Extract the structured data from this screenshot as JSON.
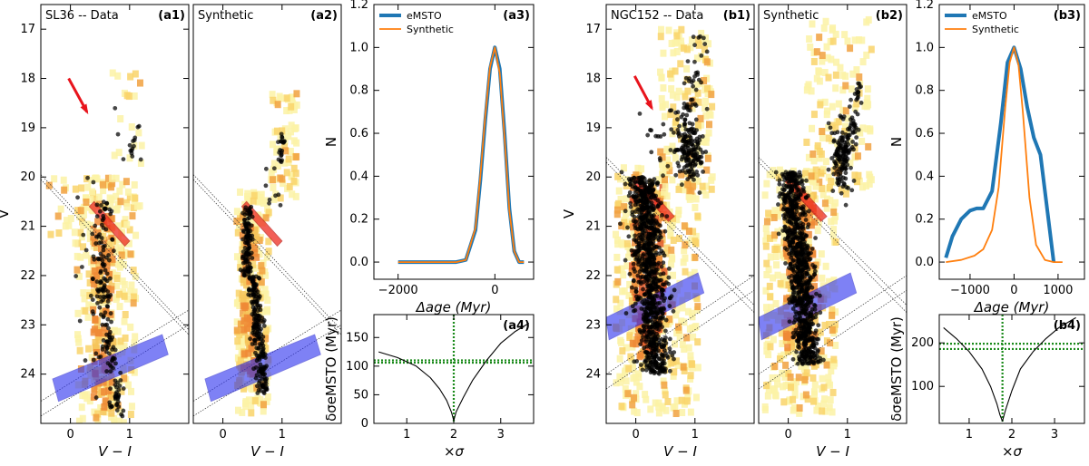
{
  "figure": {
    "description_labels": [
      "SL36 -- Data",
      "Synthetic",
      "NGC152 -- Data",
      "Synthetic"
    ]
  },
  "chart_data": [
    {
      "id": "a1",
      "type": "scatter",
      "title": "SL36 -- Data",
      "panel_label": "(a1)",
      "xlabel": "V − I",
      "ylabel": "V",
      "xlim": [
        -0.5,
        2.0
      ],
      "ylim": [
        25.0,
        16.5
      ],
      "yticks": [
        17,
        18,
        19,
        20,
        21,
        22,
        23,
        24
      ],
      "xticks": [
        0,
        1
      ],
      "xticklabels": [
        "0",
        "1"
      ],
      "yticklabels": [
        "17",
        "18",
        "19",
        "20",
        "21",
        "22",
        "23",
        "24"
      ],
      "annotations": [
        "red arrow pointing to blue stragglers",
        "red band: eMSTO region",
        "blue band: reference MS region"
      ]
    },
    {
      "id": "a2",
      "type": "scatter",
      "title": "Synthetic",
      "panel_label": "(a2)",
      "xlabel": "V − I",
      "xlim": [
        -0.5,
        2.0
      ],
      "ylim": [
        25.0,
        16.5
      ],
      "xticks": [
        0,
        1
      ],
      "xticklabels": [
        "0",
        "1"
      ]
    },
    {
      "id": "a3",
      "type": "line",
      "panel_label": "(a3)",
      "xlabel": "Δage (Myr)",
      "ylabel": "N",
      "xlim": [
        -2500,
        800
      ],
      "ylim": [
        -0.08,
        1.2
      ],
      "xticks": [
        -2000,
        0
      ],
      "xticklabels": [
        "−2000",
        "0"
      ],
      "yticks": [
        0.0,
        0.2,
        0.4,
        0.6,
        0.8,
        1.0,
        1.2
      ],
      "yticklabels": [
        "0.0",
        "0.2",
        "0.4",
        "0.6",
        "0.8",
        "1.0",
        "1.2"
      ],
      "legend": [
        "eMSTO",
        "Synthetic"
      ],
      "series": [
        {
          "name": "eMSTO",
          "color": "#1f77b4",
          "x": [
            -2000,
            -800,
            -600,
            -400,
            -300,
            -200,
            -100,
            0,
            100,
            200,
            300,
            400,
            500,
            600
          ],
          "y": [
            0,
            0,
            0.01,
            0.15,
            0.38,
            0.66,
            0.9,
            1.0,
            0.9,
            0.6,
            0.25,
            0.05,
            0,
            0
          ]
        },
        {
          "name": "Synthetic",
          "color": "#ff7f0e",
          "x": [
            -2000,
            -800,
            -600,
            -400,
            -300,
            -200,
            -100,
            0,
            100,
            200,
            300,
            400,
            500,
            600
          ],
          "y": [
            0,
            0,
            0.01,
            0.16,
            0.4,
            0.68,
            0.91,
            1.0,
            0.88,
            0.58,
            0.24,
            0.05,
            0,
            0
          ]
        }
      ]
    },
    {
      "id": "a4",
      "type": "line",
      "panel_label": "(a4)",
      "xlabel": "×σ",
      "ylabel": "δσeMSTO (Myr)",
      "xlim": [
        0.3,
        3.7
      ],
      "ylim": [
        0,
        190
      ],
      "xticks": [
        1,
        2,
        3
      ],
      "xticklabels": [
        "1",
        "2",
        "3"
      ],
      "yticks": [
        0,
        50,
        100,
        150
      ],
      "yticklabels": [
        "0",
        "50",
        "100",
        "150"
      ],
      "series": [
        {
          "name": "curve",
          "color": "#000000",
          "x": [
            0.4,
            0.8,
            1.2,
            1.5,
            1.7,
            1.85,
            1.95,
            2.0,
            2.05,
            2.2,
            2.4,
            2.7,
            3.0,
            3.3,
            3.6
          ],
          "y": [
            125,
            115,
            100,
            80,
            60,
            40,
            20,
            5,
            20,
            45,
            75,
            110,
            140,
            160,
            175
          ]
        }
      ],
      "hlines": [
        110,
        106
      ],
      "vline": 2.0
    },
    {
      "id": "b1",
      "type": "scatter",
      "title": "NGC152 -- Data",
      "panel_label": "(b1)",
      "xlabel": "V − I",
      "ylabel": "V",
      "xlim": [
        -0.5,
        2.0
      ],
      "ylim": [
        25.0,
        16.5
      ],
      "yticks": [
        17,
        18,
        19,
        20,
        21,
        22,
        23,
        24
      ],
      "xticks": [
        0,
        1
      ],
      "xticklabels": [
        "0",
        "1"
      ],
      "yticklabels": [
        "17",
        "18",
        "19",
        "20",
        "21",
        "22",
        "23",
        "24"
      ]
    },
    {
      "id": "b2",
      "type": "scatter",
      "title": "Synthetic",
      "panel_label": "(b2)",
      "xlabel": "V − I",
      "xlim": [
        -0.5,
        2.0
      ],
      "ylim": [
        25.0,
        16.5
      ],
      "xticks": [
        0,
        1
      ],
      "xticklabels": [
        "0",
        "1"
      ]
    },
    {
      "id": "b3",
      "type": "line",
      "panel_label": "(b3)",
      "xlabel": "Δage (Myr)",
      "ylabel": "N",
      "xlim": [
        -1700,
        1600
      ],
      "ylim": [
        -0.08,
        1.2
      ],
      "xticks": [
        -1000,
        0,
        1000
      ],
      "xticklabels": [
        "−1000",
        "0",
        "1000"
      ],
      "yticks": [
        0.0,
        0.2,
        0.4,
        0.6,
        0.8,
        1.0,
        1.2
      ],
      "yticklabels": [
        "0.0",
        "0.2",
        "0.4",
        "0.6",
        "0.8",
        "1.0",
        "1.2"
      ],
      "legend": [
        "eMSTO",
        "Synthetic"
      ],
      "series": [
        {
          "name": "eMSTO",
          "color": "#1f77b4",
          "x": [
            -1550,
            -1400,
            -1200,
            -1000,
            -850,
            -700,
            -500,
            -300,
            -150,
            0,
            150,
            300,
            450,
            600,
            750,
            900
          ],
          "y": [
            0.02,
            0.12,
            0.2,
            0.24,
            0.25,
            0.25,
            0.33,
            0.65,
            0.93,
            1.0,
            0.9,
            0.72,
            0.58,
            0.5,
            0.25,
            0
          ]
        },
        {
          "name": "Synthetic",
          "color": "#ff7f0e",
          "x": [
            -1550,
            -1200,
            -900,
            -700,
            -500,
            -350,
            -200,
            -100,
            0,
            100,
            200,
            350,
            500,
            700,
            900,
            1100
          ],
          "y": [
            0,
            0.01,
            0.03,
            0.06,
            0.15,
            0.35,
            0.72,
            0.93,
            1.0,
            0.92,
            0.7,
            0.3,
            0.08,
            0.01,
            0,
            0
          ]
        }
      ]
    },
    {
      "id": "b4",
      "type": "line",
      "panel_label": "(b4)",
      "xlabel": "×σ",
      "ylabel": "δσeMSTO (Myr)",
      "xlim": [
        0.3,
        3.7
      ],
      "ylim": [
        15,
        265
      ],
      "xticks": [
        1,
        2,
        3
      ],
      "xticklabels": [
        "1",
        "2",
        "3"
      ],
      "yticks": [
        100,
        200
      ],
      "yticklabels": [
        "100",
        "200"
      ],
      "series": [
        {
          "name": "curve",
          "color": "#000000",
          "x": [
            0.4,
            0.7,
            1.0,
            1.3,
            1.5,
            1.65,
            1.72,
            1.78,
            1.85,
            2.0,
            2.2,
            2.5,
            2.8,
            3.1,
            3.5
          ],
          "y": [
            235,
            210,
            180,
            140,
            100,
            60,
            35,
            20,
            45,
            90,
            140,
            180,
            210,
            235,
            258
          ]
        }
      ],
      "hlines": [
        198,
        186
      ],
      "vline": 1.78
    }
  ]
}
